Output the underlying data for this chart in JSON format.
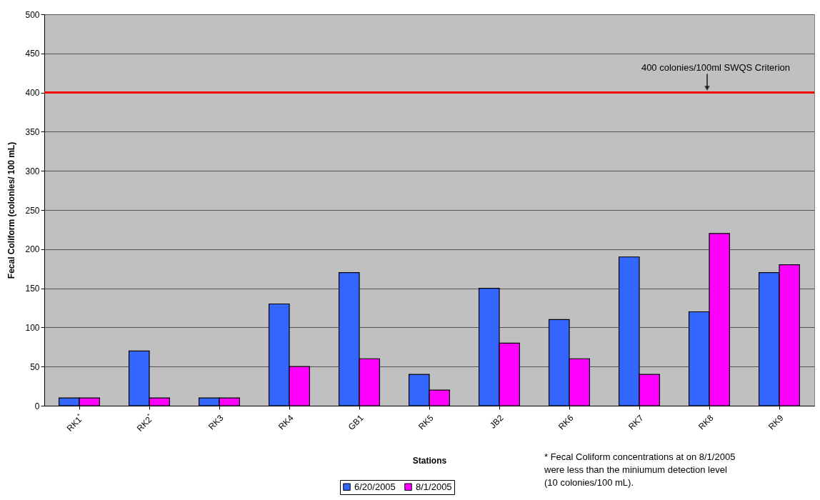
{
  "chart_data": {
    "type": "bar",
    "xlabel": "Stations",
    "ylabel": "Fecal Coliform (colonies/ 100 mL)",
    "categories": [
      "RK1$^{*}$",
      "RK2$^{*}$",
      "RK3",
      "RK4",
      "GB1",
      "RK5",
      "JB2",
      "RK6",
      "RK7",
      "RK8",
      "RK9"
    ],
    "series": [
      {
        "name": "6/20/2005",
        "color": "#3366ff",
        "values": [
          10,
          70,
          10,
          130,
          170,
          40,
          150,
          110,
          190,
          120,
          170
        ]
      },
      {
        "name": "8/1/2005",
        "color": "#ff00ff",
        "values": [
          10,
          10,
          10,
          50,
          60,
          20,
          80,
          60,
          40,
          220,
          180
        ]
      }
    ],
    "ylim": [
      0,
      500
    ],
    "yticks": [
      0,
      50,
      100,
      150,
      200,
      250,
      300,
      350,
      400,
      450,
      500
    ],
    "grid": "y",
    "legend": "bottom",
    "ref_lines": [
      {
        "axis": "y",
        "value": 400,
        "label": "400 colonies/100ml SWQS Criterion",
        "color": "#ff0000"
      }
    ],
    "annotations": [
      "* Fecal Coliform concentrations at on 8/1/2005 were less than the miniumum detection level (10 colonies/100 mL)."
    ]
  }
}
